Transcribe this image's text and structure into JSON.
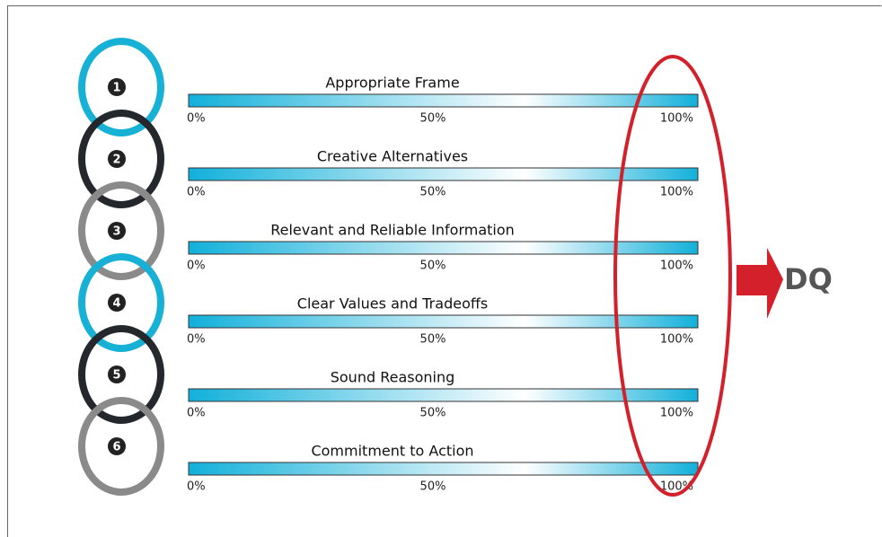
{
  "items": [
    {
      "number": "1",
      "title": "Appropriate Frame",
      "scale": [
        "0%",
        "50%",
        "100%"
      ],
      "ring_color": "#17b1d6"
    },
    {
      "number": "2",
      "title": "Creative Alternatives",
      "scale": [
        "0%",
        "50%",
        "100%"
      ],
      "ring_color": "#24272b"
    },
    {
      "number": "3",
      "title": "Relevant and Reliable Information",
      "scale": [
        "0%",
        "50%",
        "100%"
      ],
      "ring_color": "#8a8a8a"
    },
    {
      "number": "4",
      "title": "Clear Values and Tradeoffs",
      "scale": [
        "0%",
        "50%",
        "100%"
      ],
      "ring_color": "#17b1d6"
    },
    {
      "number": "5",
      "title": "Sound Reasoning",
      "scale": [
        "0%",
        "50%",
        "100%"
      ],
      "ring_color": "#24272b"
    },
    {
      "number": "6",
      "title": "Commitment to Action",
      "scale": [
        "0%",
        "50%",
        "100%"
      ],
      "ring_color": "#8a8a8a"
    }
  ],
  "result": "DQ"
}
